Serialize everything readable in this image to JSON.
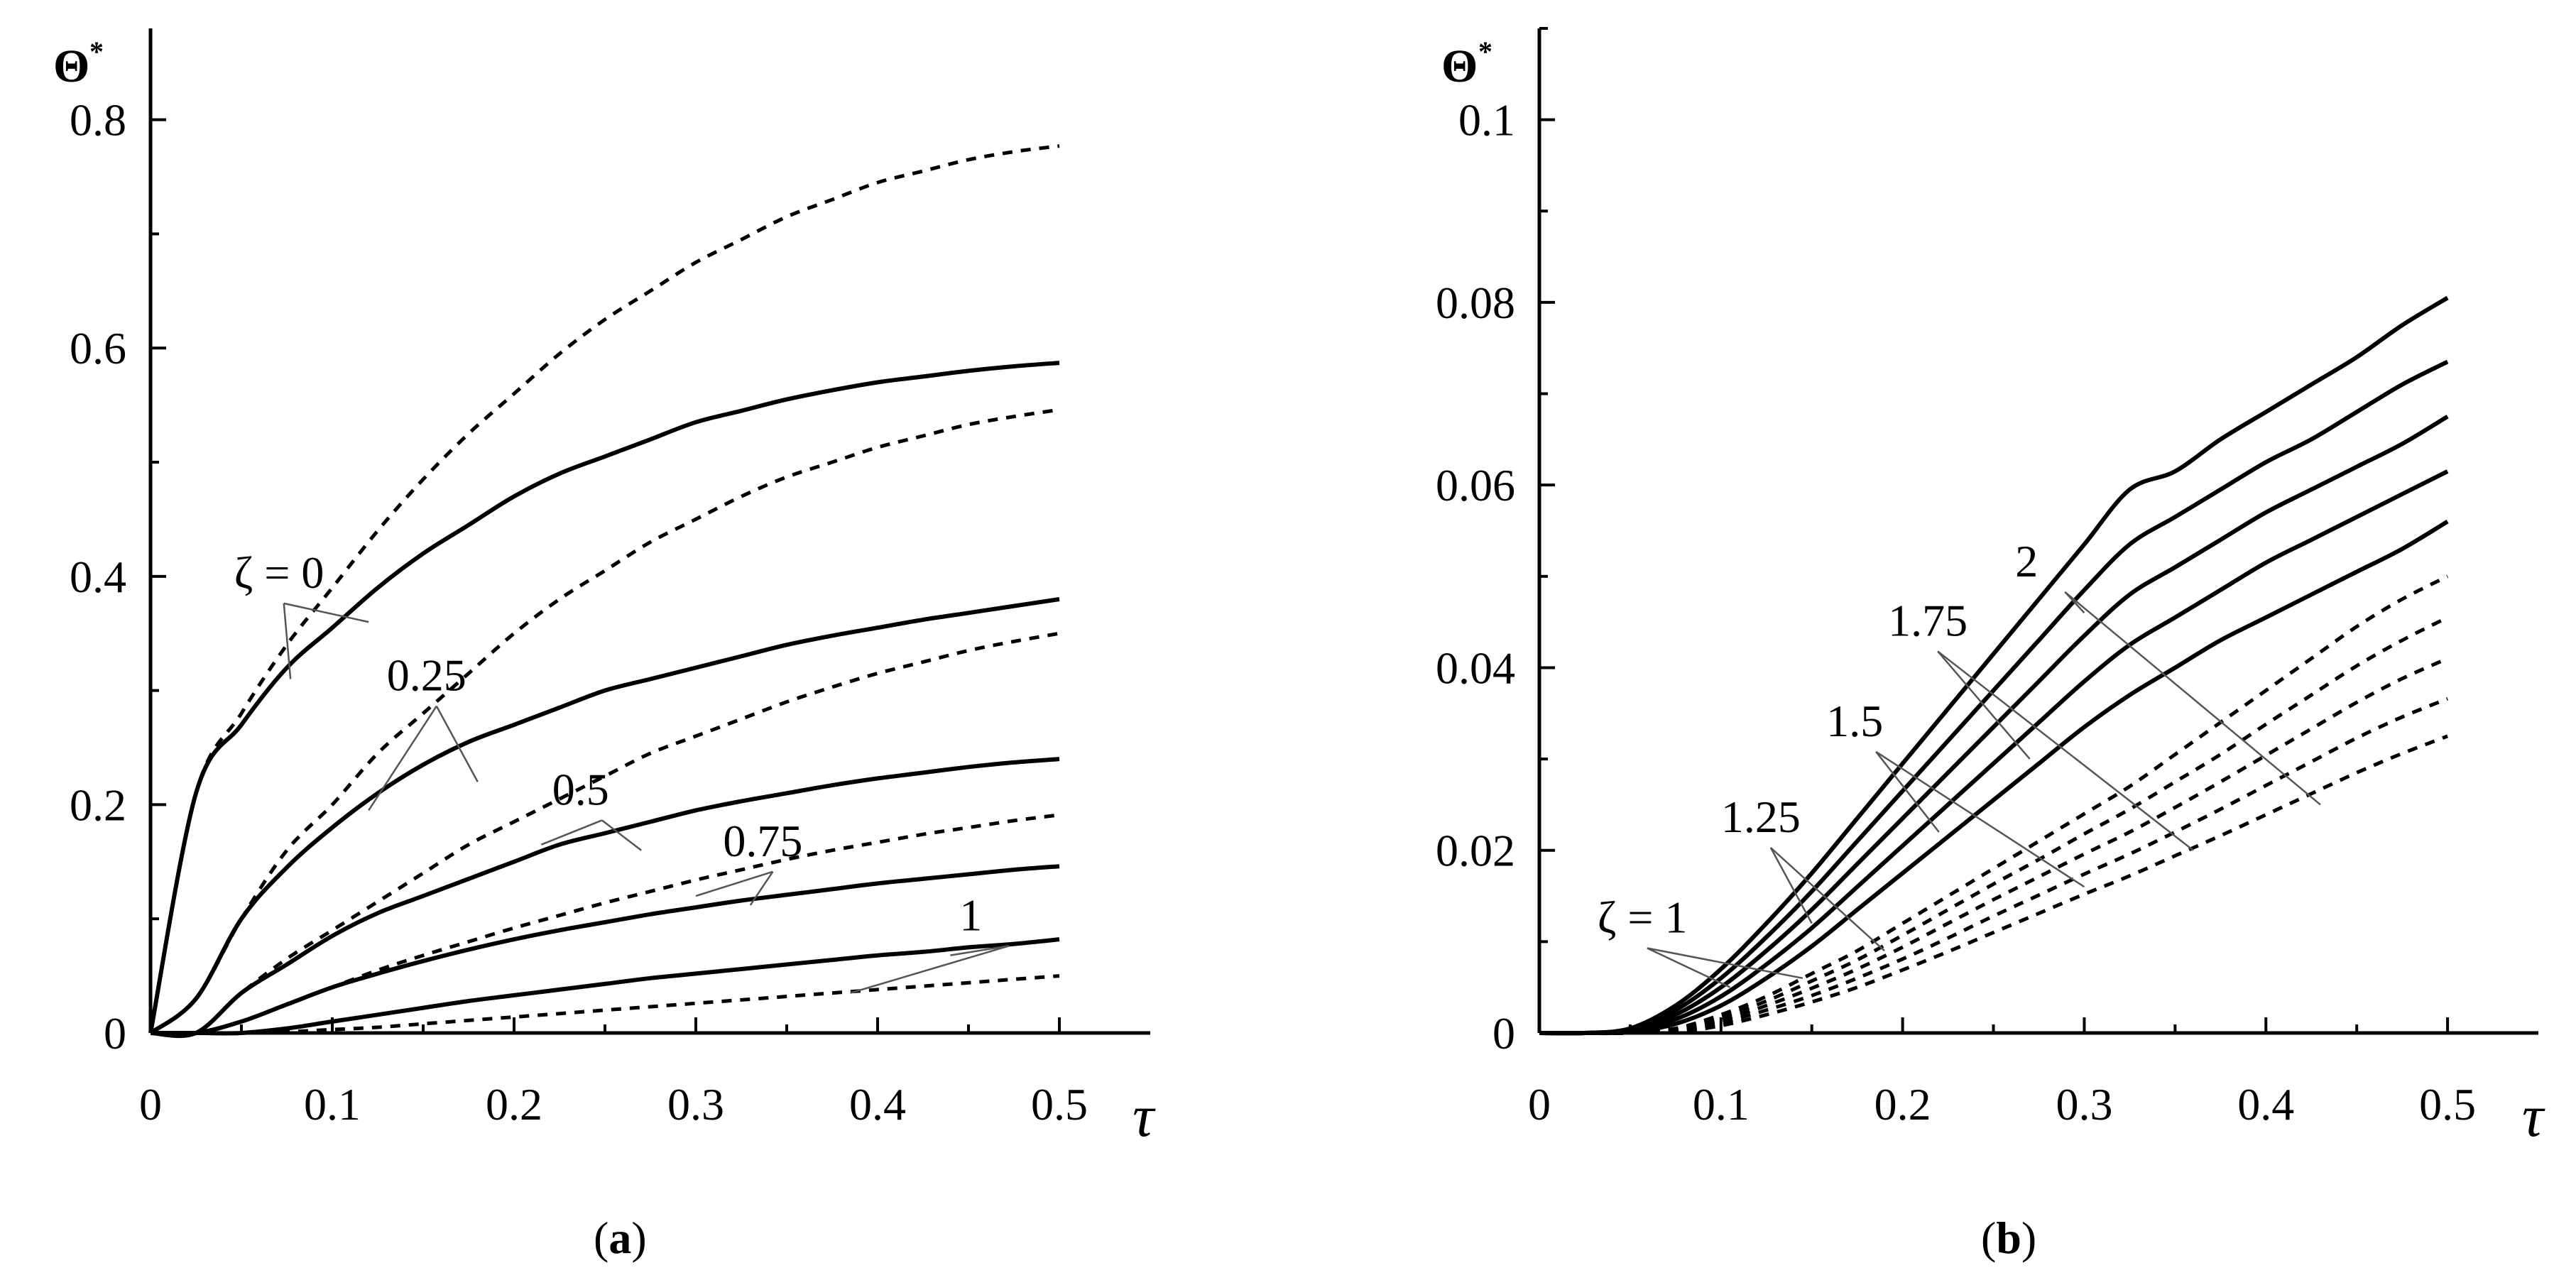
{
  "chart_data": [
    {
      "type": "line",
      "panel": "a",
      "caption": "(a)",
      "caption_open": "(",
      "caption_letter": "a",
      "caption_close": ")",
      "xlabel": "τ",
      "ylabel": "Θ",
      "ylabel_sup": "*",
      "xlim": [
        0,
        0.55
      ],
      "ylim": [
        0,
        0.88
      ],
      "xticks": [
        0,
        0.1,
        0.2,
        0.3,
        0.4,
        0.5
      ],
      "xtick_labels": [
        "0",
        "0.1",
        "0.2",
        "0.3",
        "0.4",
        "0.5"
      ],
      "yticks": [
        0,
        0.2,
        0.4,
        0.6,
        0.8
      ],
      "ytick_labels": [
        "0",
        "0.2",
        "0.4",
        "0.6",
        "0.8"
      ],
      "x": [
        0,
        0.025,
        0.05,
        0.075,
        0.1,
        0.125,
        0.15,
        0.175,
        0.2,
        0.225,
        0.25,
        0.275,
        0.3,
        0.325,
        0.35,
        0.375,
        0.4,
        0.425,
        0.45,
        0.475,
        0.5
      ],
      "series": [
        {
          "name": "ζ = 0 solid",
          "style": "solid",
          "values": [
            0,
            0.21,
            0.27,
            0.32,
            0.355,
            0.39,
            0.42,
            0.445,
            0.47,
            0.49,
            0.505,
            0.52,
            0.535,
            0.545,
            0.555,
            0.563,
            0.57,
            0.575,
            0.58,
            0.584,
            0.587
          ]
        },
        {
          "name": "ζ = 0 dashed",
          "style": "dashed",
          "values": [
            0,
            0.21,
            0.28,
            0.34,
            0.39,
            0.44,
            0.485,
            0.525,
            0.56,
            0.595,
            0.625,
            0.65,
            0.675,
            0.695,
            0.715,
            0.73,
            0.745,
            0.755,
            0.765,
            0.772,
            0.777
          ]
        },
        {
          "name": "ζ = 0.25 solid",
          "style": "solid",
          "values": [
            0,
            0.03,
            0.1,
            0.145,
            0.18,
            0.21,
            0.235,
            0.255,
            0.27,
            0.285,
            0.3,
            0.31,
            0.32,
            0.33,
            0.34,
            0.348,
            0.355,
            0.362,
            0.368,
            0.374,
            0.38
          ]
        },
        {
          "name": "ζ = 0.25 dashed",
          "style": "dashed",
          "values": [
            0,
            0.03,
            0.1,
            0.16,
            0.2,
            0.245,
            0.28,
            0.315,
            0.35,
            0.38,
            0.405,
            0.43,
            0.45,
            0.47,
            0.487,
            0.5,
            0.513,
            0.523,
            0.533,
            0.54,
            0.546
          ]
        },
        {
          "name": "ζ = 0.5 solid",
          "style": "solid",
          "values": [
            0,
            0,
            0.035,
            0.06,
            0.085,
            0.105,
            0.12,
            0.135,
            0.15,
            0.165,
            0.175,
            0.185,
            0.195,
            0.203,
            0.21,
            0.217,
            0.223,
            0.228,
            0.233,
            0.237,
            0.24
          ]
        },
        {
          "name": "ζ = 0.5 dashed",
          "style": "dashed",
          "values": [
            0,
            0,
            0.035,
            0.065,
            0.09,
            0.115,
            0.14,
            0.165,
            0.185,
            0.205,
            0.225,
            0.245,
            0.26,
            0.275,
            0.29,
            0.303,
            0.315,
            0.325,
            0.335,
            0.343,
            0.35
          ]
        },
        {
          "name": "ζ = 0.75 solid",
          "style": "solid",
          "values": [
            0,
            0,
            0.01,
            0.025,
            0.04,
            0.052,
            0.063,
            0.073,
            0.082,
            0.09,
            0.097,
            0.104,
            0.11,
            0.116,
            0.121,
            0.126,
            0.131,
            0.135,
            0.139,
            0.143,
            0.146
          ]
        },
        {
          "name": "ζ = 0.75 dashed",
          "style": "dashed",
          "values": [
            0,
            0,
            0.01,
            0.025,
            0.04,
            0.055,
            0.068,
            0.08,
            0.092,
            0.103,
            0.114,
            0.124,
            0.134,
            0.143,
            0.152,
            0.16,
            0.167,
            0.174,
            0.18,
            0.186,
            0.191
          ]
        },
        {
          "name": "ζ = 1 solid",
          "style": "solid",
          "values": [
            0,
            0,
            0,
            0.004,
            0.01,
            0.016,
            0.022,
            0.028,
            0.033,
            0.038,
            0.043,
            0.048,
            0.052,
            0.056,
            0.06,
            0.064,
            0.068,
            0.071,
            0.075,
            0.078,
            0.082
          ]
        },
        {
          "name": "ζ = 1 dashed",
          "style": "dashed",
          "values": [
            0,
            0,
            0,
            0.001,
            0.003,
            0.005,
            0.008,
            0.011,
            0.014,
            0.017,
            0.02,
            0.023,
            0.026,
            0.029,
            0.032,
            0.035,
            0.038,
            0.041,
            0.044,
            0.047,
            0.05
          ]
        }
      ],
      "annotations": [
        {
          "text": "ζ = 0",
          "x": 0.046,
          "y": 0.39,
          "targets": [
            [
              0.077,
              0.31
            ],
            [
              0.12,
              0.36
            ]
          ]
        },
        {
          "text": "0.25",
          "x": 0.13,
          "y": 0.3,
          "targets": [
            [
              0.12,
              0.195
            ],
            [
              0.18,
              0.22
            ]
          ]
        },
        {
          "text": "0.5",
          "x": 0.221,
          "y": 0.2,
          "targets": [
            [
              0.215,
              0.165
            ],
            [
              0.27,
              0.16
            ]
          ]
        },
        {
          "text": "0.75",
          "x": 0.315,
          "y": 0.155,
          "targets": [
            [
              0.3,
              0.12
            ],
            [
              0.33,
              0.112
            ]
          ]
        },
        {
          "text": "1",
          "x": 0.445,
          "y": 0.09,
          "targets": [
            [
              0.385,
              0.035
            ],
            [
              0.44,
              0.068
            ]
          ]
        }
      ]
    },
    {
      "type": "line",
      "panel": "b",
      "caption": "(b)",
      "caption_open": "(",
      "caption_letter": "b",
      "caption_close": ")",
      "xlabel": "τ",
      "ylabel": "Θ",
      "ylabel_sup": "*",
      "xlim": [
        0,
        0.55
      ],
      "ylim": [
        0,
        0.11
      ],
      "xticks": [
        0,
        0.1,
        0.2,
        0.3,
        0.4,
        0.5
      ],
      "xtick_labels": [
        "0",
        "0.1",
        "0.2",
        "0.3",
        "0.4",
        "0.5"
      ],
      "yticks": [
        0,
        0.02,
        0.04,
        0.06,
        0.08,
        0.1
      ],
      "ytick_labels": [
        "0",
        "0.02",
        "0.04",
        "0.06",
        "0.08",
        "0.1"
      ],
      "x": [
        0,
        0.025,
        0.05,
        0.075,
        0.1,
        0.125,
        0.15,
        0.175,
        0.2,
        0.225,
        0.25,
        0.275,
        0.3,
        0.325,
        0.35,
        0.375,
        0.4,
        0.425,
        0.45,
        0.475,
        0.5
      ],
      "series": [
        {
          "name": "ζ = 2 solid",
          "style": "solid",
          "values": [
            0,
            0,
            0.0005,
            0.003,
            0.007,
            0.012,
            0.0175,
            0.0235,
            0.0295,
            0.0355,
            0.0415,
            0.0475,
            0.0535,
            0.0595,
            0.0615,
            0.065,
            0.068,
            0.071,
            0.074,
            0.0775,
            0.0805
          ]
        },
        {
          "name": "ζ = 1.75 solid",
          "style": "solid",
          "values": [
            0,
            0,
            0.0004,
            0.0025,
            0.006,
            0.0105,
            0.0155,
            0.021,
            0.0265,
            0.032,
            0.0375,
            0.043,
            0.0485,
            0.0535,
            0.0565,
            0.0595,
            0.0625,
            0.065,
            0.068,
            0.071,
            0.0735
          ]
        },
        {
          "name": "ζ = 1.5 solid",
          "style": "solid",
          "values": [
            0,
            0,
            0.0003,
            0.002,
            0.005,
            0.009,
            0.0135,
            0.0185,
            0.0235,
            0.0285,
            0.0335,
            0.0385,
            0.0435,
            0.048,
            0.051,
            0.054,
            0.057,
            0.0595,
            0.062,
            0.0645,
            0.0675
          ]
        },
        {
          "name": "ζ = 1.25 solid",
          "style": "solid",
          "values": [
            0,
            0,
            0.0002,
            0.0015,
            0.004,
            0.0075,
            0.0115,
            0.016,
            0.0205,
            0.025,
            0.0295,
            0.034,
            0.0385,
            0.0425,
            0.0455,
            0.0485,
            0.0515,
            0.054,
            0.0565,
            0.059,
            0.0615
          ]
        },
        {
          "name": "ζ = 1 solid",
          "style": "solid",
          "values": [
            0,
            0,
            0.0001,
            0.001,
            0.003,
            0.006,
            0.0095,
            0.0135,
            0.0175,
            0.0215,
            0.0255,
            0.0295,
            0.0335,
            0.037,
            0.04,
            0.043,
            0.0455,
            0.048,
            0.0505,
            0.053,
            0.056
          ]
        },
        {
          "name": "ζ = 2 dashed",
          "style": "dashed",
          "values": [
            0,
            0,
            0,
            0.0005,
            0.002,
            0.004,
            0.0065,
            0.009,
            0.012,
            0.015,
            0.018,
            0.021,
            0.024,
            0.027,
            0.0305,
            0.034,
            0.0375,
            0.041,
            0.0445,
            0.0475,
            0.05
          ]
        },
        {
          "name": "ζ = 1.75 dashed",
          "style": "dashed",
          "values": [
            0,
            0,
            0,
            0.0004,
            0.0017,
            0.0035,
            0.0057,
            0.008,
            0.0107,
            0.0135,
            0.0163,
            0.019,
            0.0218,
            0.0245,
            0.0275,
            0.0305,
            0.0338,
            0.037,
            0.0402,
            0.043,
            0.0455
          ]
        },
        {
          "name": "ζ = 1.5 dashed",
          "style": "dashed",
          "values": [
            0,
            0,
            0,
            0.0003,
            0.0014,
            0.003,
            0.0049,
            0.007,
            0.0094,
            0.012,
            0.0146,
            0.0171,
            0.0196,
            0.022,
            0.0247,
            0.0275,
            0.0304,
            0.0333,
            0.0362,
            0.0388,
            0.041
          ]
        },
        {
          "name": "ζ = 1.25 dashed",
          "style": "dashed",
          "values": [
            0,
            0,
            0,
            0.0002,
            0.0011,
            0.0025,
            0.0041,
            0.006,
            0.0081,
            0.0104,
            0.0128,
            0.0151,
            0.0174,
            0.0196,
            0.022,
            0.0245,
            0.0271,
            0.0297,
            0.0323,
            0.0346,
            0.0366
          ]
        },
        {
          "name": "ζ = 1 dashed",
          "style": "dashed",
          "values": [
            0,
            0,
            0,
            0.0001,
            0.0008,
            0.002,
            0.0034,
            0.005,
            0.0069,
            0.0089,
            0.011,
            0.0131,
            0.0152,
            0.0172,
            0.0194,
            0.0216,
            0.0239,
            0.0262,
            0.0285,
            0.0306,
            0.0325
          ]
        }
      ],
      "annotations": [
        {
          "text": "2",
          "x": 0.262,
          "y": 0.05,
          "targets": [
            [
              0.3,
              0.046
            ],
            [
              0.43,
              0.025
            ]
          ]
        },
        {
          "text": "1.75",
          "x": 0.192,
          "y": 0.0435,
          "targets": [
            [
              0.27,
              0.03
            ],
            [
              0.36,
              0.02
            ]
          ]
        },
        {
          "text": "1.5",
          "x": 0.158,
          "y": 0.0325,
          "targets": [
            [
              0.22,
              0.022
            ],
            [
              0.3,
              0.016
            ]
          ]
        },
        {
          "text": "1.25",
          "x": 0.1,
          "y": 0.022,
          "targets": [
            [
              0.15,
              0.012
            ],
            [
              0.19,
              0.009
            ]
          ]
        },
        {
          "text": "ζ = 1",
          "x": 0.032,
          "y": 0.011,
          "targets": [
            [
              0.105,
              0.005
            ],
            [
              0.145,
              0.006
            ]
          ]
        }
      ]
    }
  ]
}
